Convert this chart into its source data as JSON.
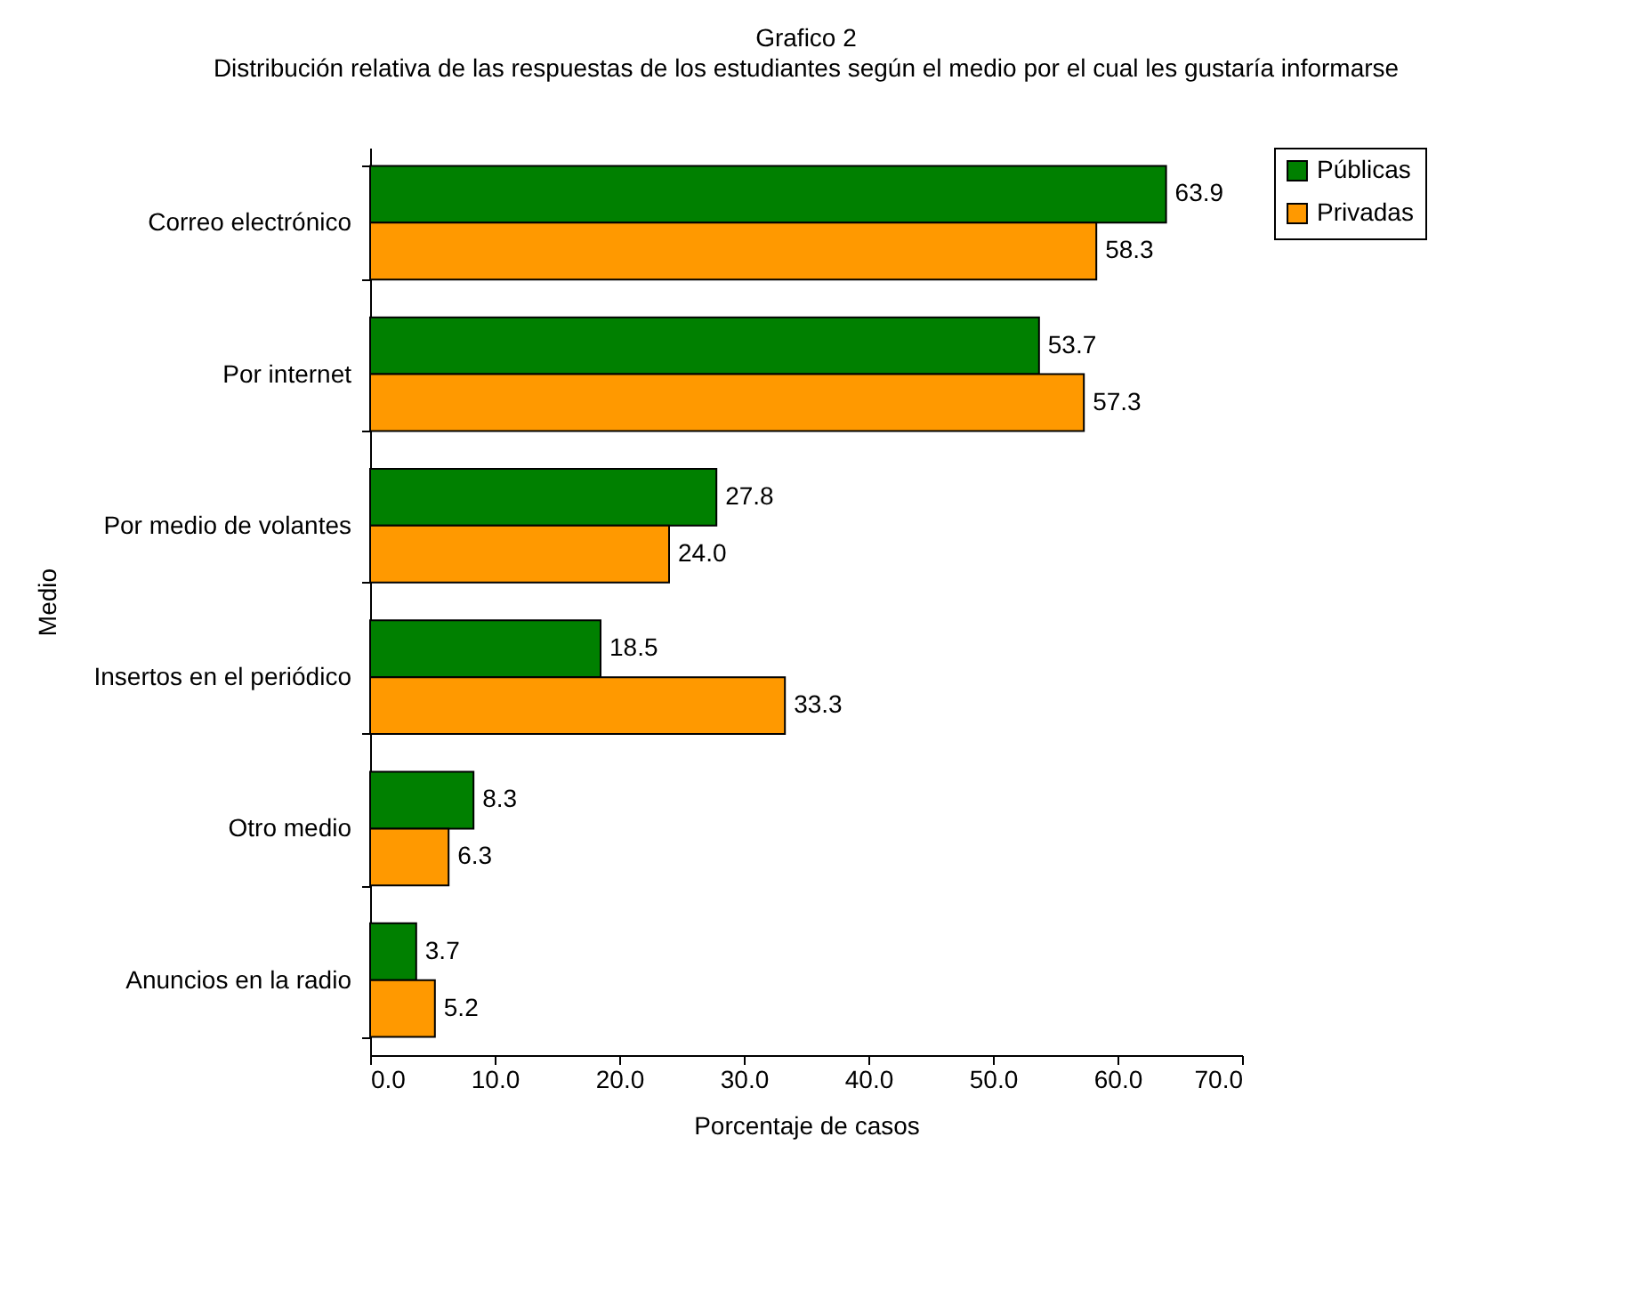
{
  "chart_data": {
    "type": "bar",
    "orientation": "horizontal",
    "title": "Grafico 2",
    "subtitle": "Distribución relativa de las respuestas de los estudiantes según el medio por el cual les gustaría informarse",
    "xlabel": "Porcentaje de casos",
    "ylabel": "Medio",
    "categories": [
      "Correo electrónico",
      "Por internet",
      "Por medio de volantes",
      "Insertos en el periódico",
      "Otro medio",
      "Anuncios en la radio"
    ],
    "series": [
      {
        "name": "Públicas",
        "color": "#008000",
        "values": [
          63.9,
          53.7,
          27.8,
          18.5,
          8.3,
          3.7
        ],
        "value_labels": [
          "63.9",
          "53.7",
          "27.8",
          "18.5",
          "8.3",
          "3.7"
        ]
      },
      {
        "name": "Privadas",
        "color": "#ff9900",
        "values": [
          58.3,
          57.3,
          24.0,
          33.3,
          6.3,
          5.2
        ],
        "value_labels": [
          "58.3",
          "57.3",
          "24.0",
          "33.3",
          "6.3",
          "5.2"
        ]
      }
    ],
    "xlim": [
      0,
      70
    ],
    "xticks": [
      {
        "value": 0,
        "label": "0.0"
      },
      {
        "value": 10,
        "label": "10.0"
      },
      {
        "value": 20,
        "label": "20.0"
      },
      {
        "value": 30,
        "label": "30.0"
      },
      {
        "value": 40,
        "label": "40.0"
      },
      {
        "value": 50,
        "label": "50.0"
      },
      {
        "value": 60,
        "label": "60.0"
      },
      {
        "value": 70,
        "label": "70.0"
      }
    ],
    "legend": "right"
  }
}
